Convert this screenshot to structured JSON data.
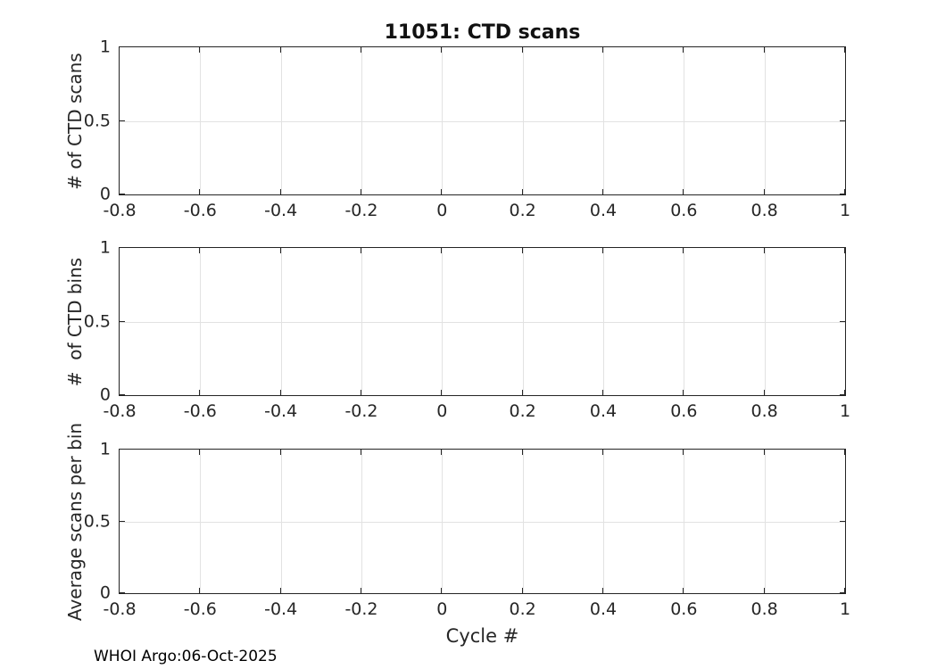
{
  "figure": {
    "title": "11051: CTD scans",
    "xlabel": "Cycle #",
    "footer": "WHOI Argo:06-Oct-2025",
    "colors": {
      "background": "#ffffff",
      "axis": "#242424",
      "grid": "#e2e2e2",
      "text": "#262626"
    }
  },
  "chart_data": [
    {
      "type": "line",
      "title": "11051: CTD scans",
      "xlabel": "",
      "ylabel": "# of CTD scans",
      "xlim": [
        -0.8,
        1
      ],
      "ylim": [
        0,
        1
      ],
      "x_ticks": [
        -0.8,
        -0.6,
        -0.4,
        -0.2,
        0,
        0.2,
        0.4,
        0.6,
        0.8,
        1
      ],
      "x_tick_labels": [
        "-0.8",
        "-0.6",
        "-0.4",
        "-0.2",
        "0",
        "0.2",
        "0.4",
        "0.6",
        "0.8",
        "1"
      ],
      "y_ticks": [
        0,
        0.5,
        1
      ],
      "y_tick_labels": [
        "0",
        "0.5",
        "1"
      ],
      "grid": true,
      "legend": null,
      "series": []
    },
    {
      "type": "line",
      "title": "",
      "xlabel": "",
      "ylabel": "#  of CTD bins",
      "xlim": [
        -0.8,
        1
      ],
      "ylim": [
        0,
        1
      ],
      "x_ticks": [
        -0.8,
        -0.6,
        -0.4,
        -0.2,
        0,
        0.2,
        0.4,
        0.6,
        0.8,
        1
      ],
      "x_tick_labels": [
        "-0.8",
        "-0.6",
        "-0.4",
        "-0.2",
        "0",
        "0.2",
        "0.4",
        "0.6",
        "0.8",
        "1"
      ],
      "y_ticks": [
        0,
        0.5,
        1
      ],
      "y_tick_labels": [
        "0",
        "0.5",
        "1"
      ],
      "grid": true,
      "legend": null,
      "series": []
    },
    {
      "type": "line",
      "title": "",
      "xlabel": "Cycle #",
      "ylabel": "Average scans per bin",
      "xlim": [
        -0.8,
        1
      ],
      "ylim": [
        0,
        1
      ],
      "x_ticks": [
        -0.8,
        -0.6,
        -0.4,
        -0.2,
        0,
        0.2,
        0.4,
        0.6,
        0.8,
        1
      ],
      "x_tick_labels": [
        "-0.8",
        "-0.6",
        "-0.4",
        "-0.2",
        "0",
        "0.2",
        "0.4",
        "0.6",
        "0.8",
        "1"
      ],
      "y_ticks": [
        0,
        0.5,
        1
      ],
      "y_tick_labels": [
        "0",
        "0.5",
        "1"
      ],
      "grid": true,
      "legend": null,
      "series": []
    }
  ]
}
